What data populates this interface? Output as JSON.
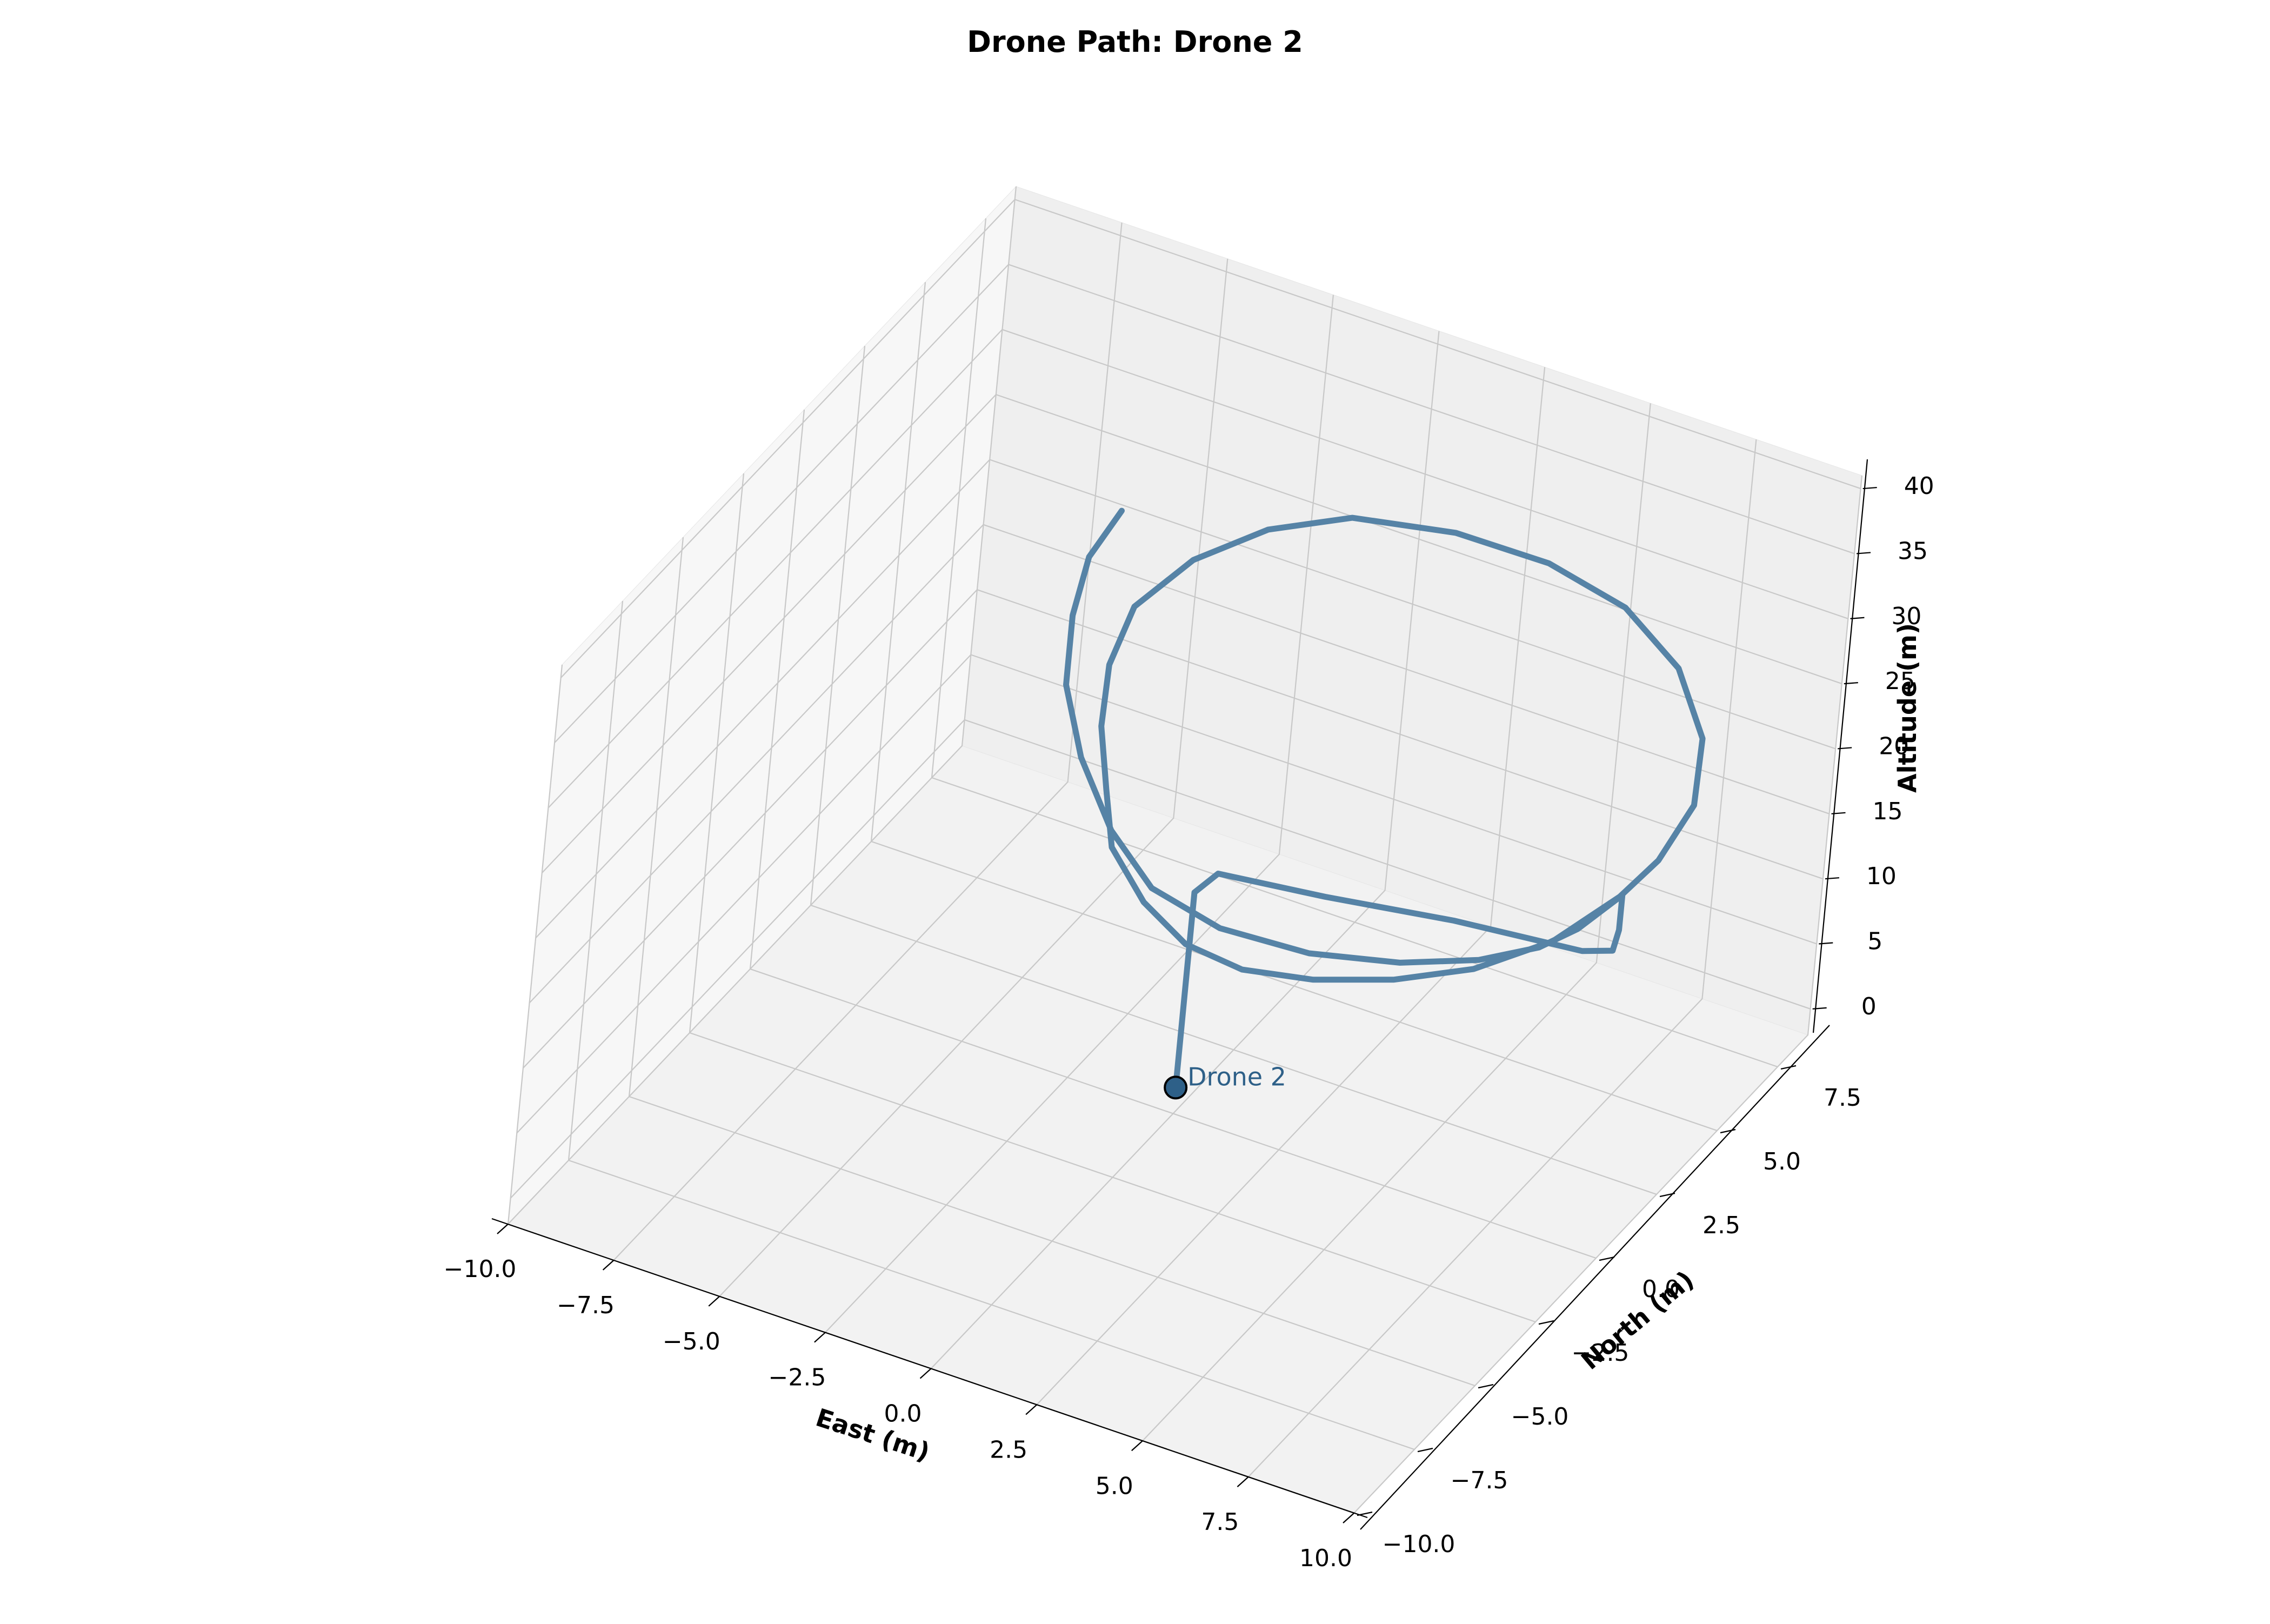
{
  "chart_data": {
    "type": "line3d",
    "title": "Drone Path: Drone 2",
    "xlabel": "East (m)",
    "ylabel": "North (m)",
    "zlabel": "Altitude (m)",
    "xlim": [
      -10,
      10
    ],
    "ylim": [
      -10,
      8.75
    ],
    "zlim": [
      -2,
      41
    ],
    "x_ticks": [
      "−10.0",
      "−7.5",
      "−5.0",
      "−2.5",
      "0.0",
      "2.5",
      "5.0",
      "7.5",
      "10.0"
    ],
    "y_ticks": [
      "−10.0",
      "−7.5",
      "−5.0",
      "−2.5",
      "0.0",
      "2.5",
      "5.0",
      "7.5"
    ],
    "z_ticks": [
      "0",
      "5",
      "10",
      "15",
      "20",
      "25",
      "30",
      "35",
      "40"
    ],
    "grid": true,
    "colors": {
      "path": "#5683a6",
      "marker_fill": "#2e6088",
      "marker_label": "#2e6088"
    },
    "series": [
      {
        "x": [
          0,
          0,
          0,
          0,
          0.5,
          3,
          6,
          9,
          9.7,
          9.8,
          9.8,
          9.8,
          9.3,
          8.3,
          7,
          5.5,
          4,
          2.5,
          1,
          -0.5,
          -1.5,
          -2.5,
          -3.2,
          -3.5,
          -3.0,
          -2.0,
          -0.6,
          1.5,
          3.6,
          5.6,
          7.4,
          8.8,
          9.6,
          9.8,
          9.7,
          9.5,
          9.1,
          8.2,
          6.8,
          5.0,
          3.0,
          1.2,
          -0.3,
          -1.8,
          -3.0,
          -3.8,
          -4.3,
          -4.4
        ],
        "y": [
          0,
          0,
          0,
          0,
          0,
          0,
          0,
          0,
          0,
          0,
          0,
          0,
          -2.0,
          -3.5,
          -4.5,
          -5.2,
          -5.5,
          -5.2,
          -4.3,
          -3.0,
          -1.5,
          0.0,
          1.5,
          3.0,
          4.5,
          5.8,
          6.8,
          7.4,
          7.6,
          7.3,
          6.4,
          5.0,
          3.3,
          1.5,
          0.0,
          -1.3,
          -2.2,
          -3.1,
          -3.9,
          -4.5,
          -4.7,
          -4.4,
          -3.5,
          -2.2,
          -0.8,
          0.8,
          2.3,
          3.8
        ],
        "z": [
          0,
          5,
          10,
          15,
          17,
          18,
          19.5,
          20.5,
          21.3,
          23.0,
          24.8,
          25.7,
          25.5,
          25.2,
          24.9,
          24.6,
          24.3,
          24.0,
          23.8,
          23.8,
          24.2,
          25.0,
          26.0,
          27.2,
          28.4,
          29.3,
          29.8,
          29.8,
          29.4,
          28.8,
          27.9,
          26.8,
          25.9,
          25.4,
          25.3,
          25.3,
          25.2,
          25.0,
          24.8,
          24.7,
          24.8,
          25.3,
          26.3,
          27.7,
          29.2,
          30.5,
          31.5,
          32.0
        ]
      }
    ],
    "marker": {
      "label": "Drone 2",
      "x": 0,
      "y": 0,
      "z": 0
    }
  }
}
